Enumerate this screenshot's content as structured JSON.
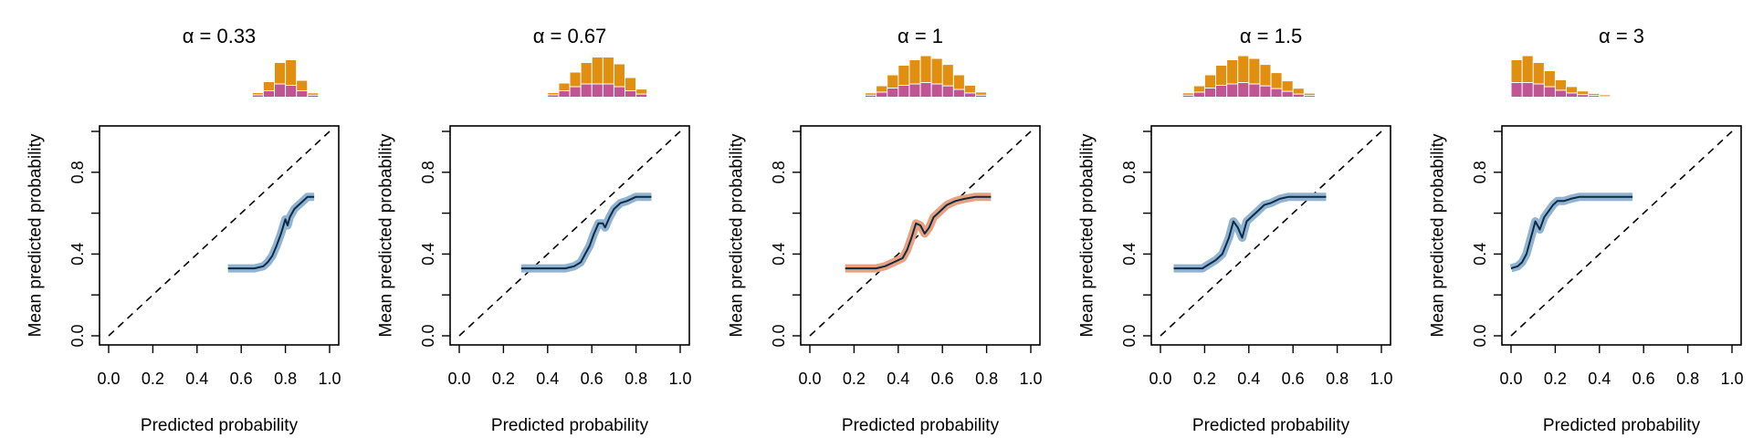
{
  "chart_data": [
    {
      "type": "line",
      "title": "α = 0.33",
      "xlabel": "Predicted probability",
      "ylabel": "Mean predicted probability",
      "xlim": [
        0,
        1
      ],
      "ylim": [
        0,
        1
      ],
      "xticks": [
        "0.0",
        "0.2",
        "0.4",
        "0.6",
        "0.8",
        "1.0"
      ],
      "yticks": [
        "0.0",
        "0.4",
        "0.8"
      ],
      "line_color": "#0d2a45",
      "band_color": "#8fb3d1",
      "reference_line": "dashed diagonal y = x",
      "x": [
        0.54,
        0.58,
        0.62,
        0.66,
        0.7,
        0.72,
        0.74,
        0.76,
        0.78,
        0.8,
        0.81,
        0.82,
        0.84,
        0.86,
        0.88,
        0.9,
        0.93
      ],
      "y": [
        0.33,
        0.33,
        0.33,
        0.33,
        0.34,
        0.36,
        0.39,
        0.44,
        0.5,
        0.57,
        0.54,
        0.58,
        0.62,
        0.64,
        0.66,
        0.68,
        0.68
      ],
      "hist": {
        "bins": [
          [
            0.65,
            0.7
          ],
          [
            0.7,
            0.75
          ],
          [
            0.75,
            0.8
          ],
          [
            0.8,
            0.85
          ],
          [
            0.85,
            0.9
          ],
          [
            0.9,
            0.95
          ]
        ],
        "top": [
          0.05,
          0.3,
          0.75,
          0.9,
          0.35,
          0.05
        ],
        "bottom": [
          0.05,
          0.2,
          0.45,
          0.4,
          0.2,
          0.04
        ],
        "top_color": "#e08f10",
        "bottom_color": "#c15593"
      }
    },
    {
      "type": "line",
      "title": "α = 0.67",
      "xlabel": "Predicted probability",
      "ylabel": "Mean predicted probability",
      "xlim": [
        0,
        1
      ],
      "ylim": [
        0,
        1
      ],
      "xticks": [
        "0.0",
        "0.2",
        "0.4",
        "0.6",
        "0.8",
        "1.0"
      ],
      "yticks": [
        "0.0",
        "0.4",
        "0.8"
      ],
      "line_color": "#0d2a45",
      "band_color": "#8fb3d1",
      "reference_line": "dashed diagonal y = x",
      "x": [
        0.28,
        0.33,
        0.38,
        0.43,
        0.48,
        0.52,
        0.55,
        0.57,
        0.59,
        0.61,
        0.63,
        0.65,
        0.66,
        0.68,
        0.7,
        0.73,
        0.76,
        0.8,
        0.87
      ],
      "y": [
        0.33,
        0.33,
        0.33,
        0.33,
        0.33,
        0.34,
        0.36,
        0.4,
        0.44,
        0.5,
        0.55,
        0.55,
        0.53,
        0.58,
        0.62,
        0.65,
        0.66,
        0.68,
        0.68
      ],
      "hist": {
        "bins": [
          [
            0.4,
            0.45
          ],
          [
            0.45,
            0.5
          ],
          [
            0.5,
            0.55
          ],
          [
            0.55,
            0.6
          ],
          [
            0.6,
            0.65
          ],
          [
            0.65,
            0.7
          ],
          [
            0.7,
            0.75
          ],
          [
            0.75,
            0.8
          ],
          [
            0.8,
            0.85
          ]
        ],
        "top": [
          0.05,
          0.25,
          0.5,
          0.75,
          0.95,
          0.95,
          0.8,
          0.45,
          0.15
        ],
        "bottom": [
          0.05,
          0.2,
          0.35,
          0.45,
          0.45,
          0.45,
          0.35,
          0.2,
          0.08
        ],
        "top_color": "#e08f10",
        "bottom_color": "#c15593"
      }
    },
    {
      "type": "line",
      "title": "α = 1",
      "xlabel": "Predicted probability",
      "ylabel": "Mean predicted probability",
      "xlim": [
        0,
        1
      ],
      "ylim": [
        0,
        1
      ],
      "xticks": [
        "0.0",
        "0.2",
        "0.4",
        "0.6",
        "0.8",
        "1.0"
      ],
      "yticks": [
        "0.0",
        "0.4",
        "0.8"
      ],
      "line_color": "#0d2a45",
      "band_color": "#e8a07e",
      "reference_line": "dashed diagonal y = x",
      "x": [
        0.16,
        0.2,
        0.25,
        0.3,
        0.34,
        0.38,
        0.4,
        0.42,
        0.44,
        0.46,
        0.48,
        0.5,
        0.52,
        0.54,
        0.56,
        0.58,
        0.6,
        0.62,
        0.66,
        0.7,
        0.75,
        0.82
      ],
      "y": [
        0.33,
        0.33,
        0.33,
        0.33,
        0.34,
        0.36,
        0.37,
        0.38,
        0.42,
        0.48,
        0.55,
        0.54,
        0.5,
        0.53,
        0.58,
        0.6,
        0.62,
        0.64,
        0.66,
        0.67,
        0.68,
        0.68
      ],
      "hist": {
        "bins": [
          [
            0.25,
            0.3
          ],
          [
            0.3,
            0.35
          ],
          [
            0.35,
            0.4
          ],
          [
            0.4,
            0.45
          ],
          [
            0.45,
            0.5
          ],
          [
            0.5,
            0.55
          ],
          [
            0.55,
            0.6
          ],
          [
            0.6,
            0.65
          ],
          [
            0.65,
            0.7
          ],
          [
            0.7,
            0.75
          ],
          [
            0.75,
            0.8
          ]
        ],
        "top": [
          0.05,
          0.2,
          0.45,
          0.7,
          0.85,
          0.95,
          0.9,
          0.75,
          0.5,
          0.25,
          0.08
        ],
        "bottom": [
          0.04,
          0.15,
          0.3,
          0.4,
          0.45,
          0.5,
          0.45,
          0.38,
          0.25,
          0.12,
          0.04
        ],
        "top_color": "#e08f10",
        "bottom_color": "#c15593"
      }
    },
    {
      "type": "line",
      "title": "α = 1.5",
      "xlabel": "Predicted probability",
      "ylabel": "Mean predicted probability",
      "xlim": [
        0,
        1
      ],
      "ylim": [
        0,
        1
      ],
      "xticks": [
        "0.0",
        "0.2",
        "0.4",
        "0.6",
        "0.8",
        "1.0"
      ],
      "yticks": [
        "0.0",
        "0.4",
        "0.8"
      ],
      "line_color": "#0d2a45",
      "band_color": "#8fb3d1",
      "reference_line": "dashed diagonal y = x",
      "x": [
        0.06,
        0.1,
        0.15,
        0.19,
        0.22,
        0.25,
        0.28,
        0.31,
        0.33,
        0.35,
        0.37,
        0.39,
        0.41,
        0.44,
        0.47,
        0.5,
        0.54,
        0.58,
        0.63,
        0.68,
        0.75
      ],
      "y": [
        0.33,
        0.33,
        0.33,
        0.33,
        0.35,
        0.37,
        0.4,
        0.48,
        0.56,
        0.53,
        0.48,
        0.56,
        0.58,
        0.61,
        0.64,
        0.65,
        0.67,
        0.68,
        0.68,
        0.68,
        0.68
      ],
      "hist": {
        "bins": [
          [
            0.1,
            0.15
          ],
          [
            0.15,
            0.2
          ],
          [
            0.2,
            0.25
          ],
          [
            0.25,
            0.3
          ],
          [
            0.3,
            0.35
          ],
          [
            0.35,
            0.4
          ],
          [
            0.4,
            0.45
          ],
          [
            0.45,
            0.5
          ],
          [
            0.5,
            0.55
          ],
          [
            0.55,
            0.6
          ],
          [
            0.6,
            0.65
          ],
          [
            0.65,
            0.7
          ]
        ],
        "top": [
          0.05,
          0.2,
          0.45,
          0.7,
          0.85,
          0.95,
          0.9,
          0.75,
          0.55,
          0.35,
          0.18,
          0.05
        ],
        "bottom": [
          0.04,
          0.15,
          0.3,
          0.4,
          0.45,
          0.5,
          0.45,
          0.38,
          0.28,
          0.18,
          0.08,
          0.03
        ],
        "top_color": "#e08f10",
        "bottom_color": "#c15593"
      }
    },
    {
      "type": "line",
      "title": "α = 3",
      "xlabel": "Predicted probability",
      "ylabel": "Mean predicted probability",
      "xlim": [
        0,
        1
      ],
      "ylim": [
        0,
        1
      ],
      "xticks": [
        "0.0",
        "0.2",
        "0.4",
        "0.6",
        "0.8",
        "1.0"
      ],
      "yticks": [
        "0.0",
        "0.4",
        "0.8"
      ],
      "line_color": "#0d2a45",
      "band_color": "#8fb3d1",
      "reference_line": "dashed diagonal y = x",
      "x": [
        0.0,
        0.03,
        0.05,
        0.07,
        0.09,
        0.11,
        0.13,
        0.15,
        0.17,
        0.19,
        0.21,
        0.24,
        0.27,
        0.31,
        0.36,
        0.42,
        0.48,
        0.55
      ],
      "y": [
        0.33,
        0.34,
        0.36,
        0.4,
        0.48,
        0.56,
        0.52,
        0.58,
        0.61,
        0.64,
        0.66,
        0.66,
        0.67,
        0.68,
        0.68,
        0.68,
        0.68,
        0.68
      ],
      "hist": {
        "bins": [
          [
            0.0,
            0.05
          ],
          [
            0.05,
            0.1
          ],
          [
            0.1,
            0.15
          ],
          [
            0.15,
            0.2
          ],
          [
            0.2,
            0.25
          ],
          [
            0.25,
            0.3
          ],
          [
            0.3,
            0.35
          ],
          [
            0.35,
            0.4
          ],
          [
            0.4,
            0.45
          ]
        ],
        "top": [
          0.8,
          0.95,
          0.75,
          0.55,
          0.35,
          0.2,
          0.1,
          0.04,
          0.02
        ],
        "bottom": [
          0.5,
          0.5,
          0.45,
          0.35,
          0.22,
          0.12,
          0.06,
          0.03,
          0.01
        ],
        "top_color": "#e08f10",
        "bottom_color": "#c15593"
      }
    }
  ]
}
